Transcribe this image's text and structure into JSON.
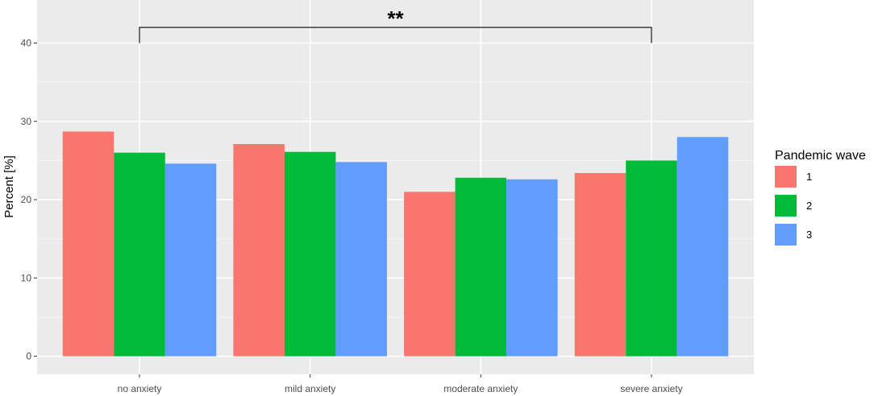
{
  "chart_data": {
    "type": "bar",
    "title": "",
    "xlabel": "",
    "ylabel": "Percent [%]",
    "categories": [
      "no anxiety",
      "mild anxiety",
      "moderate anxiety",
      "severe anxiety"
    ],
    "series": [
      {
        "name": "1",
        "color": "#F8766D",
        "values": [
          28.7,
          27.1,
          21.0,
          23.4
        ]
      },
      {
        "name": "2",
        "color": "#00BA38",
        "values": [
          26.0,
          26.1,
          22.8,
          25.0
        ]
      },
      {
        "name": "3",
        "color": "#619CFF",
        "values": [
          24.6,
          24.8,
          22.6,
          28.0
        ]
      }
    ],
    "ylim": [
      -2.3,
      45.5
    ],
    "yticks": [
      0,
      10,
      20,
      30,
      40
    ],
    "ytick_labels": [
      "0",
      "10",
      "20",
      "30",
      "40"
    ],
    "grid": true,
    "legend": {
      "title": "Pandemic wave",
      "placement": "right"
    },
    "annotations": [
      {
        "type": "significance-bracket",
        "label": "**",
        "from": "no anxiety",
        "to": "severe anxiety",
        "y": 42,
        "tip_y": 40
      }
    ]
  }
}
